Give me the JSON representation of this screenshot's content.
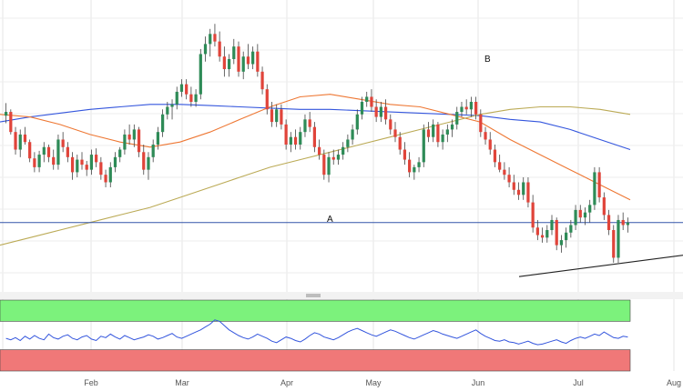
{
  "chart_data": [
    {
      "type": "candlestick",
      "title": "",
      "x_axis": {
        "labels": [
          "Feb",
          "Mar",
          "Apr",
          "May",
          "Jun",
          "Jul",
          "Aug"
        ]
      },
      "grid": true,
      "colors": {
        "up": "#2e8b57",
        "down": "#e0443a",
        "wick": "#444444"
      },
      "candles_ohlc": [
        [
          1.103,
          1.113,
          1.097,
          1.106
        ],
        [
          1.106,
          1.108,
          1.088,
          1.09
        ],
        [
          1.09,
          1.094,
          1.072,
          1.076
        ],
        [
          1.076,
          1.092,
          1.07,
          1.088
        ],
        [
          1.088,
          1.094,
          1.08,
          1.082
        ],
        [
          1.082,
          1.084,
          1.066,
          1.069
        ],
        [
          1.069,
          1.074,
          1.058,
          1.062
        ],
        [
          1.062,
          1.075,
          1.058,
          1.072
        ],
        [
          1.072,
          1.082,
          1.066,
          1.078
        ],
        [
          1.078,
          1.08,
          1.066,
          1.07
        ],
        [
          1.07,
          1.076,
          1.06,
          1.064
        ],
        [
          1.064,
          1.088,
          1.06,
          1.084
        ],
        [
          1.084,
          1.09,
          1.074,
          1.078
        ],
        [
          1.078,
          1.082,
          1.066,
          1.07
        ],
        [
          1.07,
          1.074,
          1.052,
          1.058
        ],
        [
          1.058,
          1.072,
          1.054,
          1.068
        ],
        [
          1.068,
          1.074,
          1.06,
          1.064
        ],
        [
          1.064,
          1.067,
          1.055,
          1.06
        ],
        [
          1.06,
          1.076,
          1.056,
          1.072
        ],
        [
          1.072,
          1.077,
          1.062,
          1.066
        ],
        [
          1.066,
          1.07,
          1.052,
          1.056
        ],
        [
          1.056,
          1.06,
          1.046,
          1.05
        ],
        [
          1.05,
          1.066,
          1.046,
          1.062
        ],
        [
          1.062,
          1.074,
          1.058,
          1.07
        ],
        [
          1.07,
          1.078,
          1.066,
          1.076
        ],
        [
          1.076,
          1.092,
          1.072,
          1.088
        ],
        [
          1.088,
          1.096,
          1.08,
          1.084
        ],
        [
          1.084,
          1.096,
          1.078,
          1.092
        ],
        [
          1.092,
          1.094,
          1.07,
          1.074
        ],
        [
          1.074,
          1.08,
          1.056,
          1.06
        ],
        [
          1.06,
          1.074,
          1.052,
          1.07
        ],
        [
          1.07,
          1.084,
          1.066,
          1.08
        ],
        [
          1.08,
          1.094,
          1.076,
          1.09
        ],
        [
          1.09,
          1.108,
          1.086,
          1.104
        ],
        [
          1.104,
          1.114,
          1.1,
          1.11
        ],
        [
          1.11,
          1.116,
          1.1,
          1.112
        ],
        [
          1.112,
          1.126,
          1.108,
          1.122
        ],
        [
          1.122,
          1.132,
          1.118,
          1.128
        ],
        [
          1.128,
          1.132,
          1.116,
          1.12
        ],
        [
          1.12,
          1.126,
          1.11,
          1.114
        ],
        [
          1.114,
          1.124,
          1.11,
          1.12
        ],
        [
          1.12,
          1.156,
          1.116,
          1.152
        ],
        [
          1.152,
          1.166,
          1.146,
          1.16
        ],
        [
          1.16,
          1.172,
          1.15,
          1.168
        ],
        [
          1.168,
          1.176,
          1.158,
          1.162
        ],
        [
          1.162,
          1.17,
          1.146,
          1.15
        ],
        [
          1.15,
          1.158,
          1.134,
          1.14
        ],
        [
          1.14,
          1.152,
          1.134,
          1.148
        ],
        [
          1.148,
          1.164,
          1.144,
          1.158
        ],
        [
          1.158,
          1.162,
          1.134,
          1.138
        ],
        [
          1.138,
          1.154,
          1.132,
          1.15
        ],
        [
          1.15,
          1.16,
          1.14,
          1.144
        ],
        [
          1.144,
          1.158,
          1.14,
          1.154
        ],
        [
          1.154,
          1.16,
          1.134,
          1.138
        ],
        [
          1.138,
          1.142,
          1.12,
          1.124
        ],
        [
          1.124,
          1.128,
          1.104,
          1.108
        ],
        [
          1.108,
          1.114,
          1.094,
          1.098
        ],
        [
          1.098,
          1.112,
          1.094,
          1.108
        ],
        [
          1.108,
          1.112,
          1.092,
          1.096
        ],
        [
          1.096,
          1.1,
          1.076,
          1.08
        ],
        [
          1.08,
          1.09,
          1.074,
          1.086
        ],
        [
          1.086,
          1.092,
          1.076,
          1.08
        ],
        [
          1.08,
          1.094,
          1.076,
          1.09
        ],
        [
          1.09,
          1.104,
          1.086,
          1.1
        ],
        [
          1.1,
          1.106,
          1.09,
          1.094
        ],
        [
          1.094,
          1.098,
          1.074,
          1.078
        ],
        [
          1.078,
          1.084,
          1.068,
          1.072
        ],
        [
          1.072,
          1.076,
          1.052,
          1.056
        ],
        [
          1.056,
          1.074,
          1.05,
          1.07
        ],
        [
          1.07,
          1.076,
          1.064,
          1.068
        ],
        [
          1.068,
          1.076,
          1.064,
          1.072
        ],
        [
          1.072,
          1.082,
          1.068,
          1.078
        ],
        [
          1.078,
          1.088,
          1.074,
          1.084
        ],
        [
          1.084,
          1.096,
          1.08,
          1.092
        ],
        [
          1.092,
          1.108,
          1.088,
          1.104
        ],
        [
          1.104,
          1.118,
          1.1,
          1.114
        ],
        [
          1.114,
          1.122,
          1.11,
          1.118
        ],
        [
          1.118,
          1.124,
          1.106,
          1.11
        ],
        [
          1.11,
          1.116,
          1.098,
          1.102
        ],
        [
          1.102,
          1.114,
          1.098,
          1.11
        ],
        [
          1.11,
          1.116,
          1.096,
          1.1
        ],
        [
          1.1,
          1.104,
          1.088,
          1.092
        ],
        [
          1.092,
          1.098,
          1.082,
          1.086
        ],
        [
          1.086,
          1.09,
          1.072,
          1.076
        ],
        [
          1.076,
          1.082,
          1.064,
          1.068
        ],
        [
          1.068,
          1.074,
          1.054,
          1.058
        ],
        [
          1.058,
          1.064,
          1.052,
          1.062
        ],
        [
          1.062,
          1.07,
          1.058,
          1.066
        ],
        [
          1.066,
          1.096,
          1.062,
          1.092
        ],
        [
          1.092,
          1.098,
          1.082,
          1.086
        ],
        [
          1.086,
          1.1,
          1.082,
          1.096
        ],
        [
          1.096,
          1.098,
          1.078,
          1.082
        ],
        [
          1.082,
          1.092,
          1.076,
          1.088
        ],
        [
          1.088,
          1.096,
          1.082,
          1.092
        ],
        [
          1.092,
          1.1,
          1.086,
          1.096
        ],
        [
          1.096,
          1.11,
          1.092,
          1.106
        ],
        [
          1.106,
          1.114,
          1.102,
          1.11
        ],
        [
          1.11,
          1.116,
          1.104,
          1.108
        ],
        [
          1.108,
          1.118,
          1.102,
          1.114
        ],
        [
          1.114,
          1.118,
          1.1,
          1.104
        ],
        [
          1.104,
          1.108,
          1.086,
          1.09
        ],
        [
          1.09,
          1.094,
          1.08,
          1.084
        ],
        [
          1.084,
          1.09,
          1.072,
          1.076
        ],
        [
          1.076,
          1.08,
          1.062,
          1.066
        ],
        [
          1.066,
          1.072,
          1.058,
          1.06
        ],
        [
          1.06,
          1.066,
          1.052,
          1.056
        ],
        [
          1.056,
          1.062,
          1.046,
          1.05
        ],
        [
          1.05,
          1.056,
          1.04,
          1.044
        ],
        [
          1.044,
          1.05,
          1.036,
          1.04
        ],
        [
          1.04,
          1.054,
          1.036,
          1.05
        ],
        [
          1.05,
          1.054,
          1.03,
          1.034
        ],
        [
          1.034,
          1.04,
          1.01,
          1.014
        ],
        [
          1.014,
          1.02,
          1.004,
          1.008
        ],
        [
          1.008,
          1.014,
          1.002,
          1.006
        ],
        [
          1.006,
          1.016,
          1.002,
          1.012
        ],
        [
          1.012,
          1.024,
          1.008,
          1.02
        ],
        [
          1.02,
          1.022,
          0.996,
          1.0
        ],
        [
          1.0,
          1.008,
          0.994,
          1.004
        ],
        [
          1.004,
          1.014,
          0.998,
          1.01
        ],
        [
          1.01,
          1.02,
          1.006,
          1.016
        ],
        [
          1.016,
          1.032,
          1.012,
          1.028
        ],
        [
          1.028,
          1.032,
          1.018,
          1.022
        ],
        [
          1.022,
          1.03,
          1.016,
          1.026
        ],
        [
          1.026,
          1.036,
          1.018,
          1.032
        ],
        [
          1.032,
          1.062,
          1.028,
          1.058
        ],
        [
          1.058,
          1.062,
          1.034,
          1.038
        ],
        [
          1.038,
          1.042,
          1.02,
          1.024
        ],
        [
          1.024,
          1.028,
          1.008,
          1.012
        ],
        [
          1.012,
          1.016,
          0.986,
          0.99
        ],
        [
          0.99,
          1.024,
          0.986,
          1.02
        ],
        [
          1.02,
          1.026,
          1.012,
          1.016
        ],
        [
          1.016,
          1.022,
          1.01,
          1.018
        ]
      ],
      "series": [
        {
          "kind": "line",
          "color": "#3355dd",
          "y_start": 1.09,
          "y_end": 1.09,
          "values": [
            1.098,
            1.102,
            1.105,
            1.108,
            1.11,
            1.112,
            1.112,
            1.111,
            1.11,
            1.109,
            1.108,
            1.108,
            1.107,
            1.106,
            1.105,
            1.104,
            1.103,
            1.1,
            1.098,
            1.092,
            1.084,
            1.076
          ]
        },
        {
          "kind": "line",
          "color": "#ee7733",
          "values": [
            1.104,
            1.102,
            1.096,
            1.088,
            1.082,
            1.078,
            1.082,
            1.09,
            1.1,
            1.11,
            1.118,
            1.12,
            1.116,
            1.112,
            1.11,
            1.104,
            1.098,
            1.084,
            1.072,
            1.06,
            1.048,
            1.036
          ]
        },
        {
          "kind": "line",
          "color": "#bbaa55",
          "values": [
            1.0,
            1.006,
            1.012,
            1.018,
            1.024,
            1.03,
            1.038,
            1.046,
            1.054,
            1.062,
            1.068,
            1.074,
            1.08,
            1.086,
            1.092,
            1.098,
            1.104,
            1.108,
            1.11,
            1.11,
            1.108,
            1.104
          ]
        },
        {
          "kind": "horizontal",
          "color": "#3355aa",
          "y": 1.018
        },
        {
          "kind": "trendline",
          "color": "#222222",
          "from": [
            0.76,
            0.975
          ],
          "to": [
            1.0,
            0.992
          ]
        }
      ],
      "annotations": [
        {
          "text": "A"
        },
        {
          "text": "B"
        }
      ]
    },
    {
      "type": "line",
      "color": "#3355dd",
      "zones": {
        "upper_color": "#7cf27c",
        "lower_color": "#f07878"
      },
      "ylim": [
        0,
        100
      ],
      "levels": [
        70,
        30
      ],
      "values": [
        46,
        44,
        47,
        43,
        49,
        45,
        50,
        46,
        44,
        52,
        47,
        45,
        49,
        51,
        46,
        44,
        48,
        50,
        45,
        43,
        49,
        47,
        52,
        48,
        45,
        50,
        47,
        44,
        46,
        48,
        51,
        49,
        45,
        47,
        50,
        53,
        48,
        46,
        49,
        52,
        55,
        58,
        62,
        66,
        72,
        70,
        64,
        58,
        54,
        50,
        47,
        45,
        48,
        52,
        49,
        46,
        42,
        40,
        44,
        48,
        46,
        43,
        41,
        45,
        50,
        54,
        52,
        48,
        46,
        44,
        47,
        51,
        55,
        58,
        60,
        57,
        54,
        51,
        49,
        52,
        55,
        58,
        56,
        53,
        50,
        47,
        45,
        48,
        51,
        54,
        57,
        55,
        52,
        50,
        48,
        46,
        49,
        52,
        55,
        58,
        53,
        49,
        46,
        43,
        42,
        44,
        41,
        40,
        38,
        40,
        42,
        39,
        37,
        38,
        40,
        42,
        44,
        41,
        39,
        43,
        46,
        48,
        46,
        49,
        52,
        50,
        55,
        51,
        47,
        46,
        49,
        48
      ]
    }
  ]
}
